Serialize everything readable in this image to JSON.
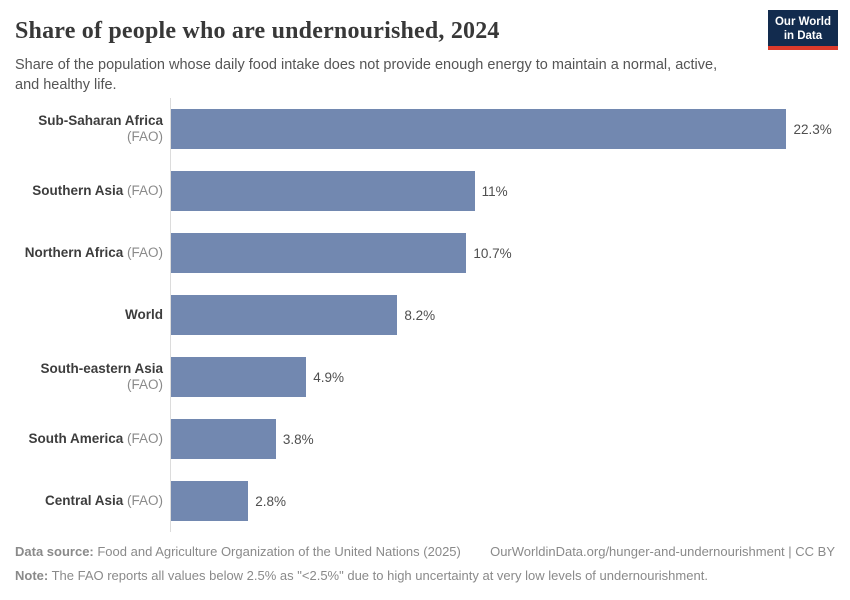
{
  "header": {
    "title": "Share of people who are undernourished, 2024",
    "subtitle": "Share of the population whose daily food intake does not provide enough energy to maintain a normal, active, and healthy life.",
    "logo": {
      "line1": "Our World",
      "line2": "in Data"
    }
  },
  "chart_data": {
    "type": "bar",
    "orientation": "horizontal",
    "title": "Share of people who are undernourished, 2024",
    "xlabel": "",
    "ylabel": "",
    "unit": "%",
    "xlim": [
      0,
      24
    ],
    "grid": false,
    "bar_color": "#7288b0",
    "categories": [
      "Sub-Saharan Africa (FAO)",
      "Southern Asia (FAO)",
      "Northern Africa (FAO)",
      "World",
      "South-eastern Asia (FAO)",
      "South America (FAO)",
      "Central Asia (FAO)"
    ],
    "values": [
      22.3,
      11,
      10.7,
      8.2,
      4.9,
      3.8,
      2.8
    ],
    "rows": [
      {
        "entity": "Sub-Saharan Africa",
        "qualifier": "(FAO)",
        "value": 22.3,
        "value_label": "22.3%"
      },
      {
        "entity": "Southern Asia",
        "qualifier": "(FAO)",
        "value": 11,
        "value_label": "11%"
      },
      {
        "entity": "Northern Africa",
        "qualifier": "(FAO)",
        "value": 10.7,
        "value_label": "10.7%"
      },
      {
        "entity": "World",
        "qualifier": "",
        "value": 8.2,
        "value_label": "8.2%"
      },
      {
        "entity": "South-eastern Asia",
        "qualifier": "(FAO)",
        "value": 4.9,
        "value_label": "4.9%"
      },
      {
        "entity": "South America",
        "qualifier": "(FAO)",
        "value": 3.8,
        "value_label": "3.8%"
      },
      {
        "entity": "Central Asia",
        "qualifier": "(FAO)",
        "value": 2.8,
        "value_label": "2.8%"
      }
    ]
  },
  "footer": {
    "datasource_label": "Data source:",
    "datasource_text": " Food and Agriculture Organization of the United Nations (2025)",
    "link_text": "OurWorldinData.org/hunger-and-undernourishment | CC BY",
    "note_label": "Note:",
    "note_text": " The FAO reports all values below 2.5% as \"<2.5%\" due to high uncertainty at very low levels of undernourishment."
  }
}
